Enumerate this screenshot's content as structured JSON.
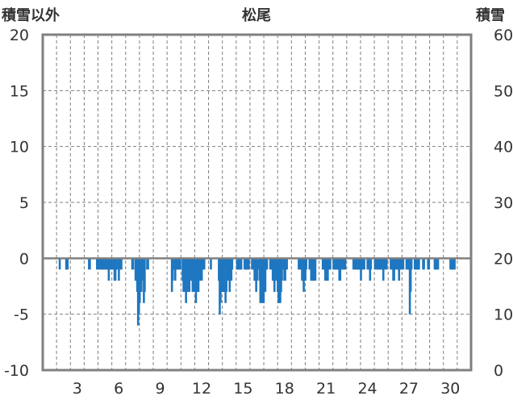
{
  "chart_data": {
    "type": "bar",
    "title": "松尾",
    "y_left_label": "積雪以外",
    "y_right_label": "積雪",
    "ylim_left": [
      -10,
      20
    ],
    "ylim_right": [
      0,
      60
    ],
    "y_left_ticks": [
      "20",
      "15",
      "10",
      "5",
      "0",
      "-5",
      "-10"
    ],
    "y_right_ticks": [
      "60",
      "50",
      "40",
      "30",
      "20",
      "10",
      "0"
    ],
    "x_ticks": [
      {
        "day": 3,
        "label": "3"
      },
      {
        "day": 6,
        "label": "6"
      },
      {
        "day": 9,
        "label": "9"
      },
      {
        "day": 12,
        "label": "12"
      },
      {
        "day": 15,
        "label": "15"
      },
      {
        "day": 18,
        "label": "18"
      },
      {
        "day": 21,
        "label": "21"
      },
      {
        "day": 24,
        "label": "24"
      },
      {
        "day": 27,
        "label": "27"
      },
      {
        "day": 30,
        "label": "30"
      }
    ],
    "x_range_days": [
      1,
      31
    ],
    "bar_color": "#1f77c0",
    "zero_line_color": "#808080",
    "grid": "dashed vertical per day, dashed horizontal per 5",
    "series": [
      {
        "values": [
          [
            1.73,
            -1
          ],
          [
            2.2,
            -1
          ],
          [
            2.24,
            -1
          ],
          [
            2.3,
            -1
          ],
          [
            3.85,
            -1
          ],
          [
            3.91,
            -1
          ],
          [
            4.43,
            -1
          ],
          [
            4.49,
            -1
          ],
          [
            4.56,
            -1
          ],
          [
            4.62,
            -1
          ],
          [
            4.68,
            -1
          ],
          [
            4.74,
            -1
          ],
          [
            4.8,
            -1
          ],
          [
            4.86,
            -1
          ],
          [
            4.92,
            -1
          ],
          [
            4.98,
            -1
          ],
          [
            5.1,
            -1
          ],
          [
            5.16,
            -1
          ],
          [
            5.22,
            -1
          ],
          [
            5.28,
            -2
          ],
          [
            5.34,
            -1
          ],
          [
            5.4,
            -1
          ],
          [
            5.52,
            -1
          ],
          [
            5.58,
            -1
          ],
          [
            5.64,
            -1
          ],
          [
            5.7,
            -2
          ],
          [
            5.76,
            -2
          ],
          [
            5.82,
            -1
          ],
          [
            5.88,
            -1
          ],
          [
            6.01,
            -2
          ],
          [
            6.07,
            -1
          ],
          [
            6.13,
            -1
          ],
          [
            6.19,
            -1
          ],
          [
            6.98,
            -1
          ],
          [
            7.04,
            -1
          ],
          [
            7.22,
            -2
          ],
          [
            7.28,
            -2
          ],
          [
            7.34,
            -3
          ],
          [
            7.4,
            -6
          ],
          [
            7.46,
            -5
          ],
          [
            7.52,
            -4
          ],
          [
            7.58,
            -3
          ],
          [
            7.64,
            -3
          ],
          [
            7.7,
            -2
          ],
          [
            7.76,
            -2
          ],
          [
            7.82,
            -4
          ],
          [
            7.88,
            -3
          ],
          [
            8.06,
            -1
          ],
          [
            8.12,
            -1
          ],
          [
            9.85,
            -3
          ],
          [
            9.91,
            -2
          ],
          [
            9.97,
            -1
          ],
          [
            10.03,
            -1
          ],
          [
            10.09,
            -2
          ],
          [
            10.15,
            -1
          ],
          [
            10.21,
            -1
          ],
          [
            10.27,
            -1
          ],
          [
            10.33,
            -1
          ],
          [
            10.39,
            -1
          ],
          [
            10.45,
            -1
          ],
          [
            10.63,
            -2
          ],
          [
            10.69,
            -3
          ],
          [
            10.75,
            -3
          ],
          [
            10.81,
            -3
          ],
          [
            10.87,
            -4
          ],
          [
            10.93,
            -3
          ],
          [
            10.99,
            -3
          ],
          [
            11.05,
            -2
          ],
          [
            11.11,
            -3
          ],
          [
            11.17,
            -2
          ],
          [
            11.23,
            -2
          ],
          [
            11.35,
            -3
          ],
          [
            11.41,
            -2
          ],
          [
            11.47,
            -3
          ],
          [
            11.53,
            -2
          ],
          [
            11.59,
            -4
          ],
          [
            11.65,
            -3
          ],
          [
            11.71,
            -3
          ],
          [
            11.77,
            -3
          ],
          [
            11.83,
            -2
          ],
          [
            11.89,
            -2
          ],
          [
            12.01,
            -2
          ],
          [
            12.07,
            -1
          ],
          [
            12.13,
            -1
          ],
          [
            12.19,
            -1
          ],
          [
            12.67,
            -1
          ],
          [
            13.25,
            -2
          ],
          [
            13.31,
            -5
          ],
          [
            13.37,
            -4
          ],
          [
            13.43,
            -3
          ],
          [
            13.49,
            -3
          ],
          [
            13.55,
            -3
          ],
          [
            13.61,
            -2
          ],
          [
            13.67,
            -3
          ],
          [
            13.73,
            -4
          ],
          [
            13.79,
            -3
          ],
          [
            13.91,
            -2
          ],
          [
            13.97,
            -2
          ],
          [
            14.03,
            -3
          ],
          [
            14.09,
            -2
          ],
          [
            14.15,
            -2
          ],
          [
            14.21,
            -1
          ],
          [
            14.57,
            -1
          ],
          [
            14.63,
            -1
          ],
          [
            14.69,
            -1
          ],
          [
            14.75,
            -1
          ],
          [
            14.81,
            -1
          ],
          [
            14.87,
            -1
          ],
          [
            15.11,
            -1
          ],
          [
            15.17,
            -1
          ],
          [
            15.23,
            -1
          ],
          [
            15.29,
            -1
          ],
          [
            15.35,
            -1
          ],
          [
            15.41,
            -1
          ],
          [
            15.65,
            -1
          ],
          [
            15.71,
            -1
          ],
          [
            15.77,
            -1
          ],
          [
            15.83,
            -2
          ],
          [
            15.89,
            -2
          ],
          [
            15.95,
            -3
          ],
          [
            16.01,
            -2
          ],
          [
            16.07,
            -1
          ],
          [
            16.19,
            -2
          ],
          [
            16.25,
            -4
          ],
          [
            16.31,
            -3
          ],
          [
            16.37,
            -4
          ],
          [
            16.43,
            -3
          ],
          [
            16.49,
            -4
          ],
          [
            16.55,
            -3
          ],
          [
            16.61,
            -3
          ],
          [
            16.67,
            -1
          ],
          [
            16.73,
            -1
          ],
          [
            16.97,
            -1
          ],
          [
            17.03,
            -1
          ],
          [
            17.09,
            -1
          ],
          [
            17.15,
            -2
          ],
          [
            17.21,
            -2
          ],
          [
            17.27,
            -3
          ],
          [
            17.33,
            -2
          ],
          [
            17.45,
            -2
          ],
          [
            17.51,
            -3
          ],
          [
            17.57,
            -4
          ],
          [
            17.63,
            -3
          ],
          [
            17.69,
            -4
          ],
          [
            17.75,
            -3
          ],
          [
            17.81,
            -2
          ],
          [
            17.87,
            -1
          ],
          [
            17.99,
            -2
          ],
          [
            18.05,
            -2
          ],
          [
            18.11,
            -1
          ],
          [
            18.17,
            -1
          ],
          [
            19.03,
            -1
          ],
          [
            19.09,
            -1
          ],
          [
            19.15,
            -1
          ],
          [
            19.21,
            -1
          ],
          [
            19.27,
            -2
          ],
          [
            19.33,
            -2
          ],
          [
            19.39,
            -3
          ],
          [
            19.45,
            -2
          ],
          [
            19.51,
            -2
          ],
          [
            19.57,
            -1
          ],
          [
            19.81,
            -1
          ],
          [
            19.87,
            -1
          ],
          [
            19.93,
            -2
          ],
          [
            19.99,
            -2
          ],
          [
            20.05,
            -2
          ],
          [
            20.11,
            -2
          ],
          [
            20.17,
            -1
          ],
          [
            20.23,
            -2
          ],
          [
            20.77,
            -1
          ],
          [
            20.83,
            -1
          ],
          [
            20.89,
            -1
          ],
          [
            20.95,
            -2
          ],
          [
            21.01,
            -2
          ],
          [
            21.07,
            -2
          ],
          [
            21.13,
            -2
          ],
          [
            21.19,
            -1
          ],
          [
            21.25,
            -1
          ],
          [
            21.31,
            -1
          ],
          [
            21.55,
            -1
          ],
          [
            21.61,
            -1
          ],
          [
            21.67,
            -1
          ],
          [
            21.73,
            -1
          ],
          [
            21.79,
            -1
          ],
          [
            21.85,
            -1
          ],
          [
            21.91,
            -1
          ],
          [
            21.97,
            -2
          ],
          [
            22.03,
            -2
          ],
          [
            22.09,
            -1
          ],
          [
            22.15,
            -1
          ],
          [
            22.21,
            -1
          ],
          [
            22.27,
            -1
          ],
          [
            22.33,
            -1
          ],
          [
            22.39,
            -1
          ],
          [
            22.99,
            -1
          ],
          [
            23.05,
            -1
          ],
          [
            23.11,
            -1
          ],
          [
            23.17,
            -1
          ],
          [
            23.23,
            -1
          ],
          [
            23.29,
            -1
          ],
          [
            23.35,
            -1
          ],
          [
            23.41,
            -1
          ],
          [
            23.47,
            -1
          ],
          [
            23.53,
            -2
          ],
          [
            23.59,
            -1
          ],
          [
            23.65,
            -1
          ],
          [
            23.71,
            -1
          ],
          [
            23.77,
            -1
          ],
          [
            24.01,
            -1
          ],
          [
            24.07,
            -1
          ],
          [
            24.13,
            -1
          ],
          [
            24.19,
            -2
          ],
          [
            24.25,
            -1
          ],
          [
            24.55,
            -1
          ],
          [
            24.61,
            -1
          ],
          [
            24.67,
            -1
          ],
          [
            24.73,
            -1
          ],
          [
            24.79,
            -1
          ],
          [
            24.85,
            -1
          ],
          [
            24.91,
            -1
          ],
          [
            24.97,
            -1
          ],
          [
            25.03,
            -1
          ],
          [
            25.09,
            -1
          ],
          [
            25.15,
            -2
          ],
          [
            25.21,
            -1
          ],
          [
            25.27,
            -1
          ],
          [
            25.33,
            -1
          ],
          [
            25.39,
            -1
          ],
          [
            25.69,
            -1
          ],
          [
            25.75,
            -1
          ],
          [
            25.81,
            -1
          ],
          [
            25.87,
            -2
          ],
          [
            25.93,
            -2
          ],
          [
            25.99,
            -1
          ],
          [
            26.05,
            -1
          ],
          [
            26.11,
            -1
          ],
          [
            26.17,
            -1
          ],
          [
            26.23,
            -1
          ],
          [
            26.29,
            -2
          ],
          [
            26.35,
            -1
          ],
          [
            26.41,
            -1
          ],
          [
            26.47,
            -1
          ],
          [
            26.53,
            -1
          ],
          [
            26.59,
            -1
          ],
          [
            26.83,
            -1
          ],
          [
            26.89,
            -1
          ],
          [
            26.95,
            -1
          ],
          [
            27.01,
            -1
          ],
          [
            27.07,
            -5
          ],
          [
            27.13,
            -3
          ],
          [
            27.19,
            -1
          ],
          [
            27.43,
            -1
          ],
          [
            27.49,
            -1
          ],
          [
            27.55,
            -1
          ],
          [
            27.61,
            -1
          ],
          [
            27.67,
            -1
          ],
          [
            27.73,
            -1
          ],
          [
            28.03,
            -1
          ],
          [
            28.09,
            -1
          ],
          [
            28.39,
            -1
          ],
          [
            28.45,
            -1
          ],
          [
            28.87,
            -1
          ],
          [
            28.93,
            -1
          ],
          [
            28.99,
            -1
          ],
          [
            29.05,
            -1
          ],
          [
            29.11,
            -1
          ],
          [
            30.01,
            -1
          ],
          [
            30.07,
            -1
          ],
          [
            30.13,
            -1
          ],
          [
            30.19,
            -1
          ],
          [
            30.25,
            -1
          ],
          [
            30.31,
            -1
          ]
        ]
      }
    ]
  }
}
